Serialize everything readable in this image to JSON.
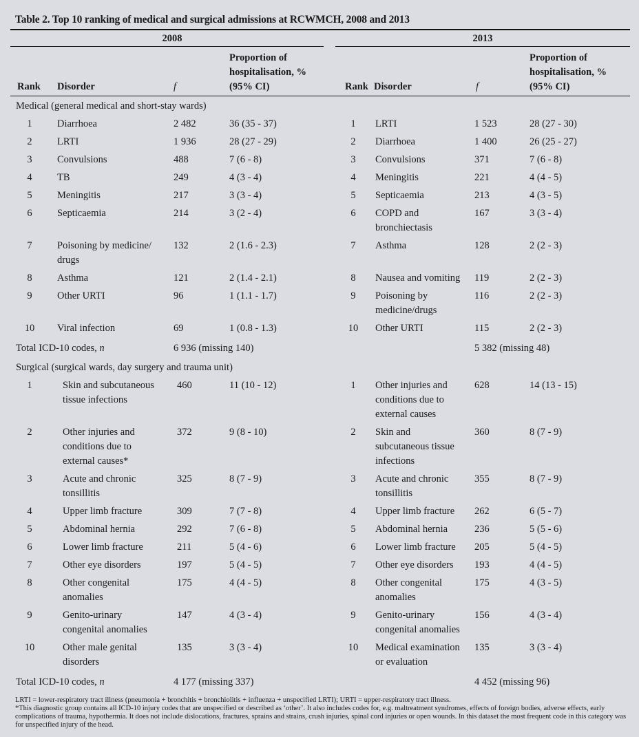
{
  "title": "Table 2. Top 10 ranking of medical and surgical admissions at RCWMCH, 2008 and 2013",
  "years": [
    "2008",
    "2013"
  ],
  "headers": {
    "rank": "Rank",
    "disorder": "Disorder",
    "f": "f",
    "proportion": "Proportion of\nhospitalisation, %\n(95% CI)"
  },
  "medical": {
    "label": "Medical (general medical and short-stay wards)",
    "rows": [
      {
        "r1": "1",
        "d1": "Diarrhoea",
        "f1": "2 482",
        "p1": "36 (35 - 37)",
        "r2": "1",
        "d2": "LRTI",
        "f2": "1 523",
        "p2": "28 (27 - 30)"
      },
      {
        "r1": "2",
        "d1": "LRTI",
        "f1": "1 936",
        "p1": "28 (27 - 29)",
        "r2": "2",
        "d2": "Diarrhoea",
        "f2": "1 400",
        "p2": "26 (25 - 27)"
      },
      {
        "r1": "3",
        "d1": "Convulsions",
        "f1": "488",
        "p1": "7 (6 - 8)",
        "r2": "3",
        "d2": "Convulsions",
        "f2": "371",
        "p2": "7 (6 - 8)"
      },
      {
        "r1": "4",
        "d1": "TB",
        "f1": "249",
        "p1": "4 (3 - 4)",
        "r2": "4",
        "d2": "Meningitis",
        "f2": "221",
        "p2": "4 (4 - 5)"
      },
      {
        "r1": "5",
        "d1": "Meningitis",
        "f1": "217",
        "p1": "3 (3 - 4)",
        "r2": "5",
        "d2": "Septicaemia",
        "f2": "213",
        "p2": "4 (3 - 5)"
      },
      {
        "r1": "6",
        "d1": "Septicaemia",
        "f1": "214",
        "p1": "3 (2 - 4)",
        "r2": "6",
        "d2": "COPD and\nbronchiectasis",
        "f2": "167",
        "p2": "3 (3 - 4)"
      },
      {
        "r1": "7",
        "d1": "Poisoning by medicine/\ndrugs",
        "f1": "132",
        "p1": "2 (1.6 - 2.3)",
        "r2": "7",
        "d2": "Asthma",
        "f2": "128",
        "p2": "2 (2 - 3)"
      },
      {
        "r1": "8",
        "d1": "Asthma",
        "f1": "121",
        "p1": "2 (1.4 - 2.1)",
        "r2": "8",
        "d2": "Nausea and vomiting",
        "f2": "119",
        "p2": "2 (2 - 3)"
      },
      {
        "r1": "9",
        "d1": "Other URTI",
        "f1": "96",
        "p1": "1 (1.1 - 1.7)",
        "r2": "9",
        "d2": "Poisoning by\nmedicine/drugs",
        "f2": "116",
        "p2": "2 (2 - 3)"
      },
      {
        "r1": "10",
        "d1": "Viral infection",
        "f1": "69",
        "p1": "1 (0.8 - 1.3)",
        "r2": "10",
        "d2": "Other URTI",
        "f2": "115",
        "p2": "2 (2 - 3)"
      }
    ],
    "total_label": "Total ICD-10 codes, ",
    "total_n": "n",
    "total_2008": "6 936 (missing 140)",
    "total_2013": "5 382 (missing 48)"
  },
  "surgical": {
    "label": "Surgical (surgical wards, day surgery and trauma unit)",
    "rows": [
      {
        "r1": "1",
        "d1": "Skin and subcutaneous\ntissue infections",
        "f1": "460",
        "p1": "11 (10 - 12)",
        "r2": "1",
        "d2": "Other injuries and\nconditions due to\nexternal causes",
        "f2": "628",
        "p2": "14 (13 - 15)"
      },
      {
        "r1": "2",
        "d1": "Other injuries and\nconditions due to\nexternal causes*",
        "f1": "372",
        "p1": "9 (8 - 10)",
        "r2": "2",
        "d2": "Skin and\nsubcutaneous tissue\ninfections",
        "f2": "360",
        "p2": "8 (7 - 9)"
      },
      {
        "r1": "3",
        "d1": "Acute and chronic\ntonsillitis",
        "f1": "325",
        "p1": "8 (7 - 9)",
        "r2": "3",
        "d2": "Acute and chronic\ntonsillitis",
        "f2": "355",
        "p2": "8 (7 - 9)"
      },
      {
        "r1": "4",
        "d1": "Upper limb fracture",
        "f1": "309",
        "p1": "7 (7 - 8)",
        "r2": "4",
        "d2": "Upper limb fracture",
        "f2": "262",
        "p2": "6 (5 - 7)"
      },
      {
        "r1": "5",
        "d1": "Abdominal hernia",
        "f1": "292",
        "p1": "7 (6 - 8)",
        "r2": "5",
        "d2": "Abdominal hernia",
        "f2": "236",
        "p2": "5 (5 - 6)"
      },
      {
        "r1": "6",
        "d1": "Lower limb fracture",
        "f1": "211",
        "p1": "5 (4 - 6)",
        "r2": "6",
        "d2": "Lower limb fracture",
        "f2": "205",
        "p2": "5 (4 - 5)"
      },
      {
        "r1": "7",
        "d1": "Other eye disorders",
        "f1": "197",
        "p1": "5 (4 - 5)",
        "r2": "7",
        "d2": "Other eye disorders",
        "f2": "193",
        "p2": "4 (4 - 5)"
      },
      {
        "r1": "8",
        "d1": "Other congenital\nanomalies",
        "f1": "175",
        "p1": "4 (4 - 5)",
        "r2": "8",
        "d2": "Other congenital\nanomalies",
        "f2": "175",
        "p2": "4 (3 - 5)"
      },
      {
        "r1": "9",
        "d1": "Genito-urinary\ncongenital anomalies",
        "f1": "147",
        "p1": "4 (3 - 4)",
        "r2": "9",
        "d2": "Genito-urinary\ncongenital anomalies",
        "f2": "156",
        "p2": "4 (3 - 4)"
      },
      {
        "r1": "10",
        "d1": "Other male genital\ndisorders",
        "f1": "135",
        "p1": "3 (3 - 4)",
        "r2": "10",
        "d2": "Medical examination\nor evaluation",
        "f2": "135",
        "p2": "3 (3 - 4)"
      }
    ],
    "total_label": "Total ICD-10 codes, ",
    "total_n": "n",
    "total_2008": "4 177 (missing 337)",
    "total_2013": "4 452 (missing 96)"
  },
  "notes": [
    "LRTI = lower-respiratory tract illness (pneumonia + bronchitis + bronchiolitis + influenza + unspecified LRTI); URTI = upper-respiratory tract illness.",
    "*This diagnostic group contains all ICD-10 injury codes that are unspecified or described as ‘other’. It also includes codes for, e.g. maltreatment syndromes, effects of foreign bodies, adverse effects, early complications of trauma, hypothermia. It does not include dislocations, fractures, sprains and strains, crush injuries, spinal cord injuries or open wounds. In this dataset the most frequent code in this category was for unspecified injury of the head."
  ]
}
